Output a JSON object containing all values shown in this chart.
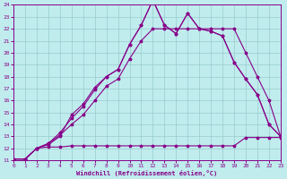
{
  "xlabel": "Windchill (Refroidissement éolien,°C)",
  "bg_color": "#c0ecee",
  "grid_color": "#99cccc",
  "line_color": "#880088",
  "spine_color": "#880088",
  "xmin": 0,
  "xmax": 23,
  "ymin": 11,
  "ymax": 24,
  "line1_x": [
    0,
    1,
    2,
    3,
    4,
    5,
    6,
    7,
    8,
    9,
    10,
    11,
    12,
    13,
    14,
    15,
    16,
    17,
    18,
    19,
    20,
    21,
    22,
    23
  ],
  "line1_y": [
    11.1,
    11.1,
    12.0,
    12.1,
    12.1,
    12.2,
    12.2,
    12.2,
    12.2,
    12.2,
    12.2,
    12.2,
    12.2,
    12.2,
    12.2,
    12.2,
    12.2,
    12.2,
    12.2,
    12.2,
    12.9,
    12.9,
    12.9,
    12.9
  ],
  "line2_x": [
    0,
    1,
    2,
    3,
    4,
    5,
    6,
    7,
    8,
    9,
    10,
    11,
    12,
    13,
    14,
    15,
    16,
    17,
    18,
    19,
    20,
    21,
    22,
    23
  ],
  "line2_y": [
    11.1,
    11.1,
    12.0,
    12.4,
    13.1,
    14.0,
    14.8,
    16.0,
    17.2,
    17.8,
    19.5,
    21.0,
    22.0,
    22.0,
    22.0,
    22.0,
    22.0,
    22.0,
    22.0,
    22.0,
    20.0,
    18.0,
    16.0,
    13.0
  ],
  "line3_x": [
    0,
    1,
    2,
    3,
    4,
    5,
    6,
    7,
    8,
    9,
    10,
    11,
    12,
    13,
    14,
    15,
    16,
    17,
    18,
    19,
    20,
    21,
    22,
    23
  ],
  "line3_y": [
    11.1,
    11.1,
    12.0,
    12.4,
    13.3,
    14.5,
    15.5,
    16.9,
    18.0,
    18.6,
    20.7,
    22.3,
    24.4,
    22.3,
    21.6,
    23.3,
    22.0,
    21.8,
    21.4,
    19.2,
    17.8,
    16.5,
    14.0,
    13.0
  ],
  "line4_x": [
    0,
    1,
    2,
    3,
    4,
    5,
    6,
    7,
    8,
    9,
    10,
    11,
    12,
    13,
    14,
    15,
    16,
    17,
    18,
    19,
    20,
    21,
    22,
    23
  ],
  "line4_y": [
    11.1,
    11.1,
    12.0,
    12.3,
    13.0,
    14.8,
    15.7,
    17.1,
    18.0,
    18.6,
    20.7,
    22.3,
    24.4,
    22.3,
    21.6,
    23.3,
    22.0,
    21.8,
    21.4,
    19.2,
    17.8,
    16.5,
    14.0,
    13.0
  ]
}
